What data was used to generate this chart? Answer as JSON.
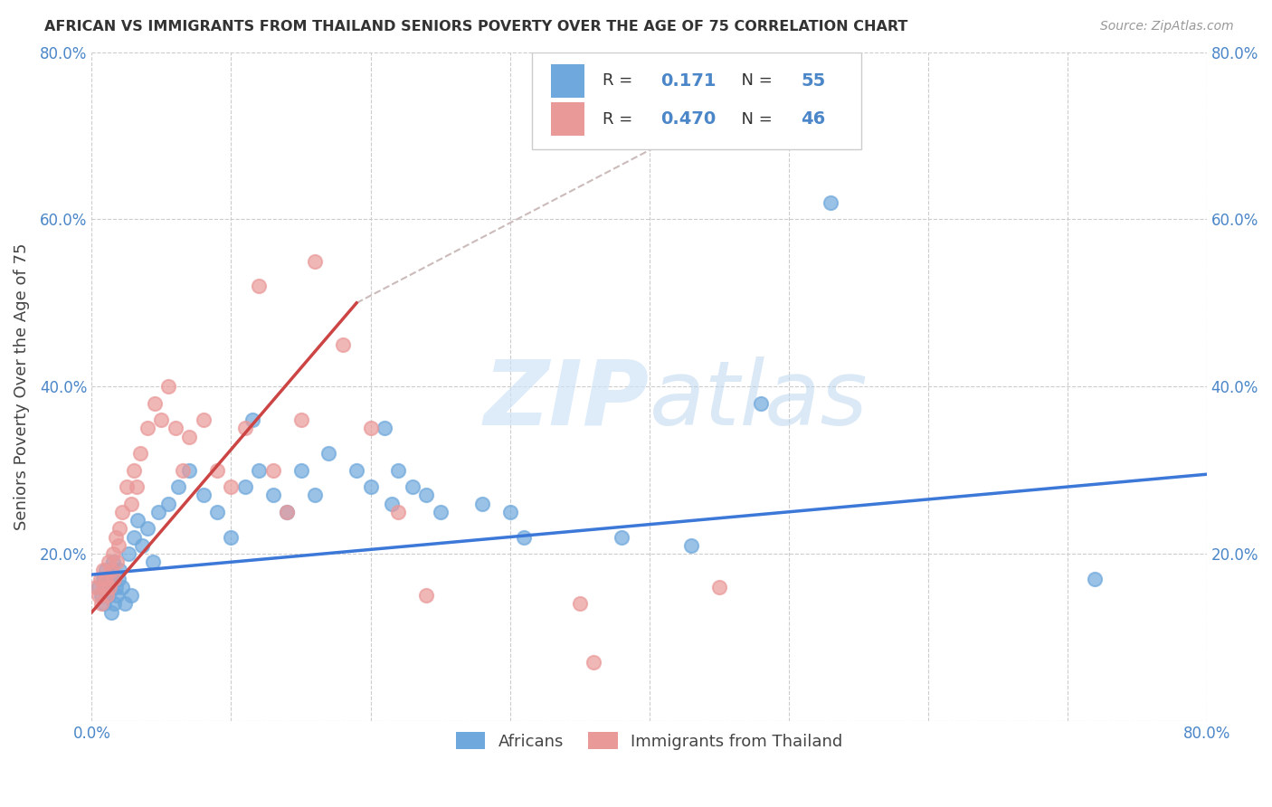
{
  "title": "AFRICAN VS IMMIGRANTS FROM THAILAND SENIORS POVERTY OVER THE AGE OF 75 CORRELATION CHART",
  "source": "Source: ZipAtlas.com",
  "ylabel": "Seniors Poverty Over the Age of 75",
  "xlim": [
    0,
    0.8
  ],
  "ylim": [
    0,
    0.8
  ],
  "blue_color": "#6fa8dc",
  "pink_color": "#ea9999",
  "blue_line_color": "#3c78d8",
  "pink_line_color": "#cc4444",
  "dash_color": "#ccbbbb",
  "tick_color": "#4a86c8",
  "legend_R1": "0.171",
  "legend_N1": "55",
  "legend_R2": "0.470",
  "legend_N2": "46",
  "blue_scatter_x": [
    0.005,
    0.007,
    0.008,
    0.009,
    0.01,
    0.011,
    0.012,
    0.013,
    0.014,
    0.015,
    0.016,
    0.017,
    0.018,
    0.019,
    0.02,
    0.022,
    0.024,
    0.026,
    0.028,
    0.03,
    0.033,
    0.036,
    0.04,
    0.044,
    0.048,
    0.055,
    0.062,
    0.07,
    0.08,
    0.09,
    0.1,
    0.11,
    0.115,
    0.12,
    0.13,
    0.14,
    0.15,
    0.16,
    0.17,
    0.19,
    0.2,
    0.21,
    0.215,
    0.22,
    0.23,
    0.24,
    0.25,
    0.28,
    0.3,
    0.31,
    0.38,
    0.43,
    0.48,
    0.53,
    0.72
  ],
  "blue_scatter_y": [
    0.16,
    0.15,
    0.17,
    0.14,
    0.18,
    0.16,
    0.15,
    0.17,
    0.13,
    0.19,
    0.14,
    0.16,
    0.15,
    0.17,
    0.18,
    0.16,
    0.14,
    0.2,
    0.15,
    0.22,
    0.24,
    0.21,
    0.23,
    0.19,
    0.25,
    0.26,
    0.28,
    0.3,
    0.27,
    0.25,
    0.22,
    0.28,
    0.36,
    0.3,
    0.27,
    0.25,
    0.3,
    0.27,
    0.32,
    0.3,
    0.28,
    0.35,
    0.26,
    0.3,
    0.28,
    0.27,
    0.25,
    0.26,
    0.25,
    0.22,
    0.22,
    0.21,
    0.38,
    0.62,
    0.17
  ],
  "pink_scatter_x": [
    0.003,
    0.005,
    0.006,
    0.007,
    0.008,
    0.009,
    0.01,
    0.011,
    0.012,
    0.013,
    0.014,
    0.015,
    0.016,
    0.017,
    0.018,
    0.019,
    0.02,
    0.022,
    0.025,
    0.028,
    0.03,
    0.032,
    0.035,
    0.04,
    0.045,
    0.05,
    0.055,
    0.06,
    0.065,
    0.07,
    0.08,
    0.09,
    0.1,
    0.11,
    0.12,
    0.13,
    0.14,
    0.15,
    0.16,
    0.18,
    0.2,
    0.22,
    0.24,
    0.35,
    0.36,
    0.45
  ],
  "pink_scatter_y": [
    0.16,
    0.15,
    0.17,
    0.14,
    0.18,
    0.16,
    0.17,
    0.15,
    0.19,
    0.16,
    0.18,
    0.2,
    0.17,
    0.22,
    0.19,
    0.21,
    0.23,
    0.25,
    0.28,
    0.26,
    0.3,
    0.28,
    0.32,
    0.35,
    0.38,
    0.36,
    0.4,
    0.35,
    0.3,
    0.34,
    0.36,
    0.3,
    0.28,
    0.35,
    0.52,
    0.3,
    0.25,
    0.36,
    0.55,
    0.45,
    0.35,
    0.25,
    0.15,
    0.14,
    0.07,
    0.16
  ],
  "watermark_zip": "ZIP",
  "watermark_atlas": "atlas",
  "background_color": "#ffffff"
}
